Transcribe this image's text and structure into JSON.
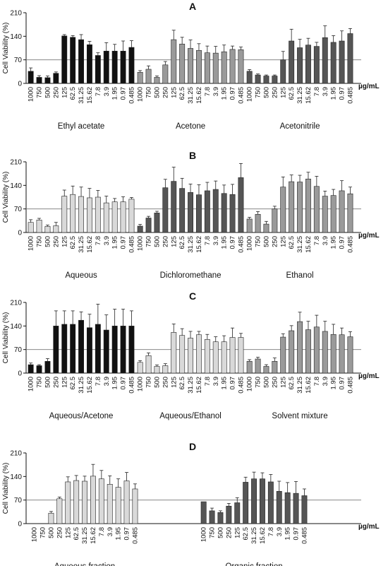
{
  "figure": {
    "unit_label": "µg/mL",
    "ylabel": "Cell Viability (%)",
    "reference_line": 70,
    "colors": {
      "black": "#111111",
      "dark": "#555555",
      "mid": "#9a9a9a",
      "light": "#d9d9d9",
      "axis": "#111111",
      "ref": "#777777"
    }
  },
  "chart_data": [
    {
      "type": "bar",
      "title": "A",
      "ylabel": "Cell Viability (%)",
      "ylim": [
        0,
        210
      ],
      "yticks": [
        0,
        70,
        140,
        210
      ],
      "categories": [
        "1000",
        "750",
        "500",
        "250",
        "125",
        "62.5",
        "31.25",
        "15.62",
        "7.8",
        "3.9",
        "1.95",
        "0.97",
        "0.485"
      ],
      "groups": [
        {
          "name": "Ethyl acetate",
          "color": "black",
          "values": [
            36,
            18,
            17,
            30,
            141,
            137,
            130,
            115,
            83,
            96,
            96,
            96,
            107
          ],
          "errors": [
            10,
            5,
            5,
            4,
            4,
            5,
            15,
            10,
            8,
            25,
            20,
            30,
            20
          ]
        },
        {
          "name": "Acetone",
          "color": "mid",
          "values": [
            33,
            42,
            18,
            55,
            130,
            117,
            104,
            98,
            91,
            90,
            94,
            101,
            100
          ],
          "errors": [
            5,
            10,
            4,
            10,
            28,
            20,
            25,
            20,
            20,
            20,
            20,
            10,
            8
          ]
        },
        {
          "name": "Acetonitrile",
          "color": "dark",
          "values": [
            36,
            25,
            22,
            22,
            70,
            126,
            106,
            114,
            110,
            136,
            122,
            126,
            148
          ],
          "errors": [
            5,
            3,
            3,
            3,
            25,
            35,
            25,
            20,
            12,
            35,
            20,
            30,
            15
          ]
        }
      ]
    },
    {
      "type": "bar",
      "title": "B",
      "ylabel": "Cell Viability (%)",
      "ylim": [
        0,
        210
      ],
      "yticks": [
        0,
        70,
        140,
        210
      ],
      "categories": [
        "1000",
        "750",
        "500",
        "250",
        "125",
        "62.5",
        "31.25",
        "15.62",
        "7.8",
        "3.9",
        "1.95",
        "0.97",
        "0.485"
      ],
      "groups": [
        {
          "name": "Aqueous",
          "color": "light",
          "values": [
            30,
            37,
            18,
            20,
            108,
            113,
            107,
            103,
            105,
            88,
            91,
            91,
            99
          ],
          "errors": [
            8,
            5,
            4,
            10,
            18,
            25,
            28,
            28,
            20,
            20,
            10,
            15,
            5
          ]
        },
        {
          "name": "Dichloromethane",
          "color": "dark",
          "values": [
            19,
            43,
            58,
            133,
            152,
            131,
            119,
            112,
            124,
            128,
            116,
            113,
            163
          ],
          "errors": [
            5,
            5,
            5,
            25,
            42,
            30,
            25,
            30,
            25,
            25,
            25,
            30,
            42
          ]
        },
        {
          "name": "Ethanol",
          "color": "mid",
          "values": [
            40,
            54,
            25,
            70,
            135,
            151,
            150,
            159,
            137,
            108,
            110,
            124,
            115
          ],
          "errors": [
            5,
            8,
            8,
            8,
            30,
            20,
            20,
            20,
            30,
            15,
            18,
            30,
            20
          ]
        }
      ]
    },
    {
      "type": "bar",
      "title": "C",
      "ylabel": "Cell Viability (%)",
      "ylim": [
        0,
        210
      ],
      "yticks": [
        0,
        70,
        140,
        210
      ],
      "categories": [
        "1000",
        "750",
        "500",
        "250",
        "125",
        "62.5",
        "31.25",
        "15.62",
        "7.8",
        "3.9",
        "1.95",
        "0.97",
        "0.485"
      ],
      "groups": [
        {
          "name": "Aqueous/Acetone",
          "color": "black",
          "values": [
            25,
            22,
            35,
            140,
            145,
            145,
            157,
            135,
            145,
            128,
            140,
            140,
            140
          ],
          "errors": [
            5,
            3,
            8,
            45,
            40,
            40,
            25,
            40,
            60,
            45,
            50,
            50,
            45
          ]
        },
        {
          "name": "Aqueous/Ethanol",
          "color": "light",
          "values": [
            32,
            52,
            20,
            22,
            121,
            112,
            104,
            114,
            100,
            93,
            93,
            106,
            106
          ],
          "errors": [
            5,
            8,
            4,
            6,
            25,
            20,
            20,
            10,
            15,
            15,
            18,
            28,
            12
          ]
        },
        {
          "name": "Solvent mixture",
          "color": "mid",
          "values": [
            35,
            42,
            20,
            35,
            107,
            126,
            153,
            129,
            137,
            124,
            115,
            114,
            108
          ],
          "errors": [
            5,
            5,
            5,
            10,
            10,
            15,
            28,
            25,
            35,
            30,
            30,
            20,
            15
          ]
        }
      ]
    },
    {
      "type": "bar",
      "title": "D",
      "ylabel": "Cell Viability (%)",
      "ylim": [
        0,
        210
      ],
      "yticks": [
        0,
        70,
        140,
        210
      ],
      "categories": [
        "1000",
        "750",
        "500",
        "250",
        "125",
        "62.5",
        "31.25",
        "15.62",
        "7.8",
        "3.9",
        "1.95",
        "0.97",
        "0.485"
      ],
      "groups": [
        {
          "name": "Aqueous fraction",
          "color": "light",
          "values": [
            0,
            0,
            31,
            74,
            124,
            128,
            126,
            141,
            133,
            117,
            108,
            127,
            103
          ],
          "errors": [
            0,
            0,
            5,
            5,
            15,
            15,
            15,
            35,
            25,
            25,
            25,
            25,
            15
          ]
        },
        {
          "name": "Organic fraction",
          "color": "dark",
          "values": [
            65,
            38,
            33,
            52,
            62,
            123,
            133,
            133,
            124,
            96,
            92,
            90,
            83
          ],
          "errors": [
            0,
            8,
            5,
            8,
            15,
            15,
            20,
            18,
            22,
            30,
            30,
            35,
            20
          ]
        }
      ]
    }
  ]
}
